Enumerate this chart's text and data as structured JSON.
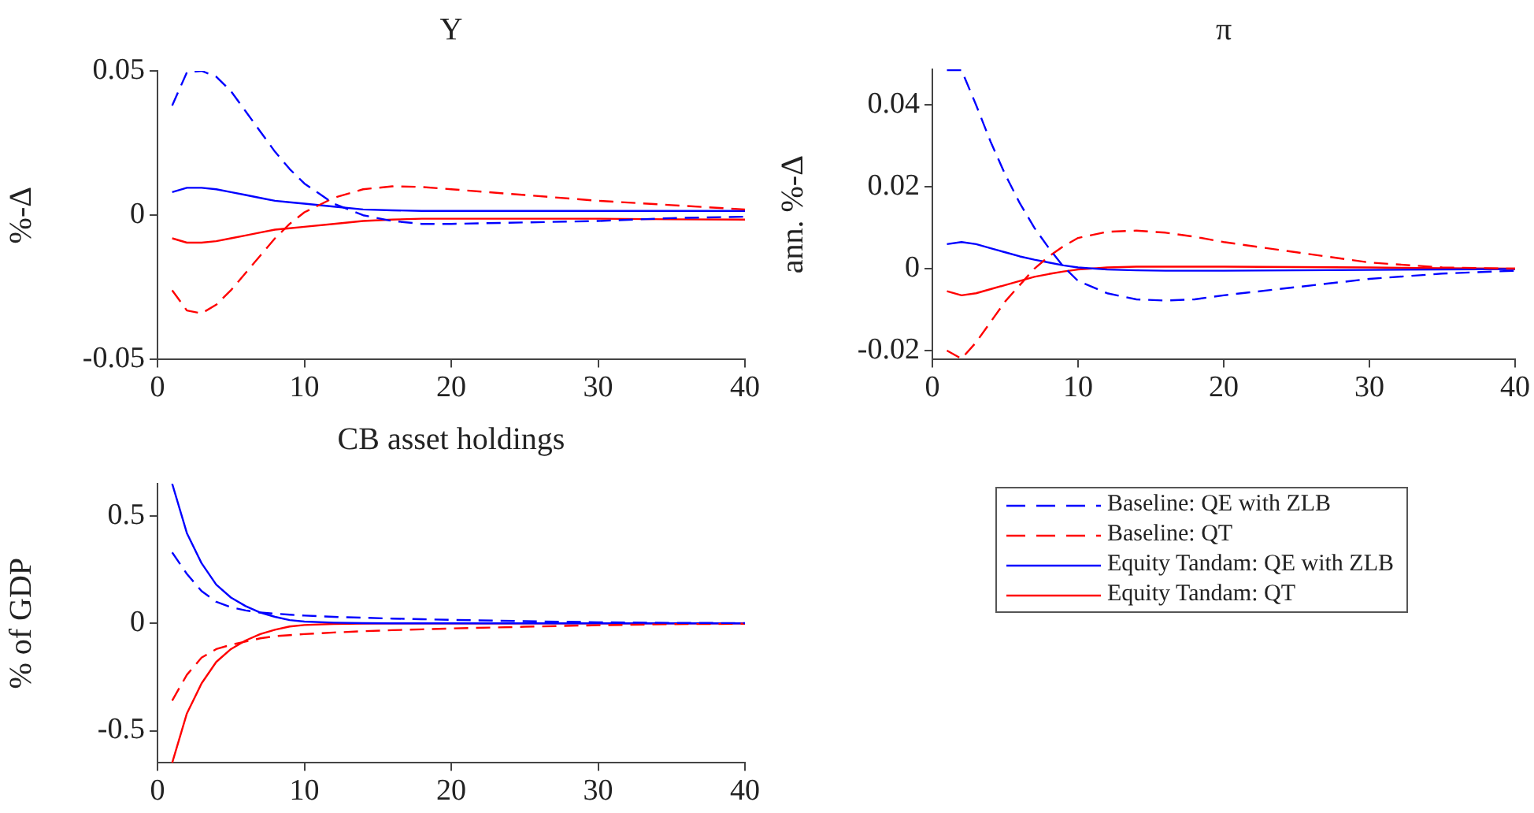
{
  "chart_data": [
    {
      "type": "line",
      "title": "Y",
      "ylabel": "%-Δ",
      "x": [
        1,
        2,
        3,
        4,
        5,
        6,
        7,
        8,
        9,
        10,
        12,
        14,
        16,
        18,
        20,
        25,
        30,
        35,
        40
      ],
      "xlim": [
        0,
        40
      ],
      "xticks": [
        0,
        10,
        20,
        30,
        40
      ],
      "ylim": [
        -0.05,
        0.05
      ],
      "yticks": [
        -0.05,
        0,
        0.05
      ],
      "grid": false,
      "legend": false,
      "series": [
        {
          "color": "#0000ff",
          "line_style": "dashed",
          "values": [
            0.038,
            0.0495,
            0.05,
            0.048,
            0.043,
            0.036,
            0.029,
            0.022,
            0.016,
            0.011,
            0.004,
            0,
            -0.002,
            -0.003,
            -0.003,
            -0.0025,
            -0.002,
            -0.001,
            -0.0005
          ]
        },
        {
          "color": "#ff0000",
          "line_style": "dashed",
          "values": [
            -0.026,
            -0.033,
            -0.034,
            -0.031,
            -0.026,
            -0.02,
            -0.014,
            -0.008,
            -0.003,
            0.001,
            0.006,
            0.009,
            0.01,
            0.0098,
            0.009,
            0.007,
            0.005,
            0.0035,
            0.002
          ]
        },
        {
          "color": "#0000ff",
          "line_style": "solid",
          "values": [
            0.008,
            0.0095,
            0.0095,
            0.009,
            0.008,
            0.007,
            0.006,
            0.005,
            0.0045,
            0.004,
            0.003,
            0.002,
            0.0017,
            0.0015,
            0.0015,
            0.0015,
            0.0015,
            0.0015,
            0.0015
          ]
        },
        {
          "color": "#ff0000",
          "line_style": "solid",
          "values": [
            -0.008,
            -0.0095,
            -0.0095,
            -0.009,
            -0.008,
            -0.007,
            -0.006,
            -0.005,
            -0.0045,
            -0.004,
            -0.003,
            -0.002,
            -0.0015,
            -0.0012,
            -0.0012,
            -0.0012,
            -0.0012,
            -0.0014,
            -0.0015
          ]
        }
      ]
    },
    {
      "type": "line",
      "title": "π",
      "ylabel": "ann. %-Δ",
      "x": [
        1,
        2,
        3,
        4,
        5,
        6,
        7,
        8,
        9,
        10,
        12,
        14,
        16,
        18,
        20,
        25,
        30,
        35,
        40
      ],
      "xlim": [
        0,
        40
      ],
      "xticks": [
        0,
        10,
        20,
        30,
        40
      ],
      "ylim": [
        -0.0222,
        0.0487
      ],
      "yticks": [
        -0.02,
        0,
        0.02,
        0.04
      ],
      "grid": false,
      "legend": false,
      "series": [
        {
          "color": "#0000ff",
          "line_style": "dashed",
          "values": [
            0.0485,
            0.0485,
            0.04,
            0.031,
            0.023,
            0.016,
            0.01,
            0.005,
            0.0005,
            -0.003,
            -0.006,
            -0.0075,
            -0.0078,
            -0.0075,
            -0.0065,
            -0.0045,
            -0.0025,
            -0.0012,
            -0.0005
          ]
        },
        {
          "color": "#ff0000",
          "line_style": "dashed",
          "values": [
            -0.02,
            -0.022,
            -0.018,
            -0.013,
            -0.008,
            -0.004,
            0,
            0.003,
            0.0055,
            0.0075,
            0.009,
            0.0093,
            0.0088,
            0.0078,
            0.0065,
            0.004,
            0.0015,
            0.0003,
            0
          ]
        },
        {
          "color": "#0000ff",
          "line_style": "solid",
          "values": [
            0.006,
            0.0065,
            0.006,
            0.005,
            0.004,
            0.003,
            0.0022,
            0.0015,
            0.0008,
            0.0003,
            -0.0002,
            -0.0004,
            -0.0005,
            -0.0005,
            -0.0005,
            -0.0004,
            -0.0003,
            -0.0002,
            -0.0001
          ]
        },
        {
          "color": "#ff0000",
          "line_style": "solid",
          "values": [
            -0.0055,
            -0.0065,
            -0.006,
            -0.005,
            -0.004,
            -0.003,
            -0.002,
            -0.0013,
            -0.0007,
            -0.0002,
            0.0003,
            0.0005,
            0.0005,
            0.0005,
            0.0005,
            0.0004,
            0.0003,
            0.0001,
            0
          ]
        }
      ]
    },
    {
      "type": "line",
      "title": "CB asset holdings",
      "ylabel": "% of GDP",
      "x": [
        1,
        2,
        3,
        4,
        5,
        6,
        7,
        8,
        9,
        10,
        12,
        14,
        16,
        18,
        20,
        25,
        30,
        35,
        40
      ],
      "xlim": [
        0,
        40
      ],
      "xticks": [
        0,
        10,
        20,
        30,
        40
      ],
      "ylim": [
        -0.65,
        0.65
      ],
      "yticks": [
        -0.5,
        0,
        0.5
      ],
      "grid": false,
      "legend": "right",
      "series": [
        {
          "name": "Baseline: QE with ZLB",
          "color": "#0000ff",
          "line_style": "dashed",
          "values": [
            0.33,
            0.23,
            0.15,
            0.1,
            0.075,
            0.06,
            0.05,
            0.045,
            0.04,
            0.036,
            0.03,
            0.026,
            0.022,
            0.019,
            0.016,
            0.01,
            0.005,
            0.002,
            0.001
          ]
        },
        {
          "name": "Baseline: QT",
          "color": "#ff0000",
          "line_style": "dashed",
          "values": [
            -0.36,
            -0.24,
            -0.16,
            -0.12,
            -0.1,
            -0.085,
            -0.07,
            -0.06,
            -0.055,
            -0.05,
            -0.043,
            -0.037,
            -0.032,
            -0.028,
            -0.024,
            -0.016,
            -0.009,
            -0.004,
            -0.002
          ]
        },
        {
          "name": "Equity Tandam: QE with ZLB",
          "color": "#0000ff",
          "line_style": "solid",
          "values": [
            0.65,
            0.42,
            0.28,
            0.18,
            0.12,
            0.08,
            0.05,
            0.03,
            0.015,
            0.008,
            0.003,
            0.001,
            0,
            0,
            0,
            0,
            0,
            0,
            0
          ]
        },
        {
          "name": "Equity Tandam: QT",
          "color": "#ff0000",
          "line_style": "solid",
          "values": [
            -0.65,
            -0.42,
            -0.28,
            -0.18,
            -0.12,
            -0.08,
            -0.05,
            -0.03,
            -0.015,
            -0.008,
            -0.003,
            -0.001,
            0,
            0,
            0,
            0,
            0,
            0,
            0
          ]
        }
      ]
    }
  ]
}
